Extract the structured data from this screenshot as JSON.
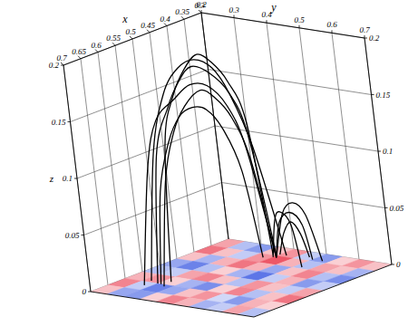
{
  "chart_data": {
    "type": "lines3d",
    "x_label": "x",
    "y_label": "y",
    "z_label": "z",
    "xlim": [
      0.3,
      0.7
    ],
    "ylim": [
      0.2,
      0.7
    ],
    "zlim": [
      0,
      0.2
    ],
    "xticks": [
      0.3,
      0.35,
      0.4,
      0.45,
      0.5,
      0.55,
      0.6,
      0.65,
      0.7
    ],
    "yticks": [
      0.2,
      0.3,
      0.4,
      0.5,
      0.6,
      0.7
    ],
    "zticks": [
      0,
      0.05,
      0.1,
      0.15,
      0.2
    ],
    "grid": true,
    "surface": {
      "x": [
        0.3,
        0.35,
        0.4,
        0.45,
        0.5,
        0.55,
        0.6,
        0.65,
        0.7
      ],
      "y": [
        0.2,
        0.25,
        0.3,
        0.35,
        0.4,
        0.45,
        0.5,
        0.55,
        0.6,
        0.65,
        0.7
      ],
      "color_range": [
        -1,
        1
      ],
      "colors": [
        "#2f4fe0",
        "#e8283c"
      ],
      "values": [
        [
          0.4,
          0.7,
          0.2,
          -0.5,
          -0.3,
          0.3,
          0.6,
          0.2
        ],
        [
          -0.3,
          0.2,
          -0.4,
          -0.8,
          -0.2,
          0.5,
          -0.2,
          -0.5
        ],
        [
          -0.6,
          -0.2,
          0.3,
          -0.3,
          0.4,
          0.1,
          -0.8,
          -0.6
        ],
        [
          0.2,
          0.5,
          0.7,
          0.1,
          0.6,
          -0.4,
          -0.5,
          0.1
        ],
        [
          0.5,
          0.9,
          0.3,
          -0.4,
          0.2,
          -0.7,
          0.2,
          0.6
        ],
        [
          -0.2,
          0.3,
          -0.5,
          -0.9,
          -0.3,
          0.1,
          0.5,
          0.3
        ],
        [
          -0.6,
          -0.3,
          0.2,
          -0.2,
          0.5,
          0.6,
          -0.1,
          -0.4
        ],
        [
          0.1,
          0.4,
          0.6,
          0.3,
          0.2,
          -0.3,
          -0.6,
          -0.2
        ],
        [
          0.5,
          0.2,
          -0.3,
          -0.6,
          -0.2,
          0.2,
          0.3,
          0.4
        ],
        [
          0.2,
          -0.4,
          -0.7,
          -0.2,
          0.4,
          0.7,
          0.1,
          -0.3
        ]
      ]
    },
    "series": [
      {
        "color": "#000000",
        "x": [
          0.6,
          0.57,
          0.54,
          0.51,
          0.48,
          0.44,
          0.41,
          0.38,
          0.35
        ],
        "y": [
          0.3,
          0.31,
          0.33,
          0.34,
          0.35,
          0.36,
          0.38,
          0.39,
          0.4
        ],
        "z": [
          0,
          0.11,
          0.15,
          0.17,
          0.18,
          0.17,
          0.15,
          0.11,
          0
        ]
      },
      {
        "color": "#000000",
        "x": [
          0.62,
          0.59,
          0.56,
          0.52,
          0.49,
          0.45,
          0.42,
          0.39,
          0.36
        ],
        "y": [
          0.28,
          0.3,
          0.31,
          0.33,
          0.35,
          0.36,
          0.38,
          0.39,
          0.41
        ],
        "z": [
          0,
          0.1,
          0.14,
          0.155,
          0.165,
          0.16,
          0.14,
          0.1,
          0
        ]
      },
      {
        "color": "#000000",
        "x": [
          0.58,
          0.56,
          0.53,
          0.5,
          0.47,
          0.44,
          0.41,
          0.38,
          0.35
        ],
        "y": [
          0.32,
          0.33,
          0.34,
          0.35,
          0.36,
          0.37,
          0.38,
          0.39,
          0.39
        ],
        "z": [
          0,
          0.12,
          0.16,
          0.18,
          0.19,
          0.18,
          0.16,
          0.12,
          0
        ]
      },
      {
        "color": "#000000",
        "x": [
          0.61,
          0.58,
          0.55,
          0.52,
          0.48,
          0.45,
          0.42,
          0.39,
          0.36
        ],
        "y": [
          0.33,
          0.34,
          0.35,
          0.36,
          0.37,
          0.38,
          0.39,
          0.4,
          0.41
        ],
        "z": [
          0,
          0.09,
          0.13,
          0.15,
          0.16,
          0.15,
          0.13,
          0.09,
          0
        ]
      },
      {
        "color": "#000000",
        "x": [
          0.59,
          0.56,
          0.53,
          0.5,
          0.47,
          0.44,
          0.41,
          0.38,
          0.34
        ],
        "y": [
          0.27,
          0.29,
          0.31,
          0.33,
          0.35,
          0.37,
          0.38,
          0.4,
          0.42
        ],
        "z": [
          0,
          0.11,
          0.16,
          0.18,
          0.185,
          0.175,
          0.15,
          0.1,
          0
        ]
      },
      {
        "color": "#000000",
        "x": [
          0.6,
          0.58,
          0.55,
          0.52,
          0.49,
          0.46,
          0.43,
          0.4,
          0.37
        ],
        "y": [
          0.31,
          0.32,
          0.33,
          0.34,
          0.35,
          0.36,
          0.37,
          0.38,
          0.38
        ],
        "z": [
          0,
          0.08,
          0.12,
          0.14,
          0.145,
          0.14,
          0.12,
          0.08,
          0
        ]
      },
      {
        "color": "#000000",
        "x": [
          0.35,
          0.35,
          0.345,
          0.34,
          0.34
        ],
        "y": [
          0.4,
          0.42,
          0.45,
          0.48,
          0.5
        ],
        "z": [
          0,
          0.03,
          0.04,
          0.03,
          0
        ]
      },
      {
        "color": "#000000",
        "x": [
          0.36,
          0.355,
          0.35,
          0.345,
          0.34
        ],
        "y": [
          0.41,
          0.44,
          0.47,
          0.5,
          0.53
        ],
        "z": [
          0,
          0.04,
          0.05,
          0.04,
          0
        ]
      },
      {
        "color": "#000000",
        "x": [
          0.34,
          0.34,
          0.335,
          0.33,
          0.33
        ],
        "y": [
          0.4,
          0.42,
          0.44,
          0.46,
          0.48
        ],
        "z": [
          0,
          0.02,
          0.03,
          0.02,
          0
        ]
      },
      {
        "color": "#000000",
        "x": [
          0.36,
          0.37,
          0.38,
          0.38,
          0.39
        ],
        "y": [
          0.4,
          0.43,
          0.46,
          0.49,
          0.52
        ],
        "z": [
          0,
          0.035,
          0.045,
          0.035,
          0
        ]
      }
    ]
  }
}
